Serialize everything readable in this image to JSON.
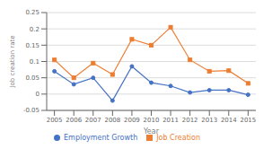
{
  "chart_data": {
    "type": "line",
    "x": [
      2005,
      2006,
      2007,
      2008,
      2009,
      2010,
      2011,
      2012,
      2013,
      2014,
      2015
    ],
    "series": [
      {
        "name": "Employment Growth",
        "color": "#4472C4",
        "marker": "circle",
        "line_style": "solid",
        "values": [
          0.07,
          0.03,
          0.05,
          -0.02,
          0.085,
          0.035,
          0.025,
          0.005,
          0.012,
          0.012,
          -0.002
        ]
      },
      {
        "name": "Job Creation",
        "color": "#ED7D31",
        "marker": "square",
        "line_style": "solid",
        "values": [
          0.105,
          0.05,
          0.095,
          0.06,
          0.168,
          0.15,
          0.205,
          0.105,
          0.07,
          0.072,
          0.033
        ]
      }
    ],
    "xlabel": "Year",
    "ylabel": "Job creation rate",
    "xlim": [
      2004.6,
      2015.4
    ],
    "xticks": [
      2005,
      2006,
      2007,
      2008,
      2009,
      2010,
      2011,
      2012,
      2013,
      2014,
      2015
    ],
    "ylim": [
      -0.05,
      0.25
    ],
    "yticks": [
      -0.05,
      0,
      0.05,
      0.1,
      0.15,
      0.2,
      0.25
    ],
    "grid": "y",
    "legend": "bottom"
  }
}
